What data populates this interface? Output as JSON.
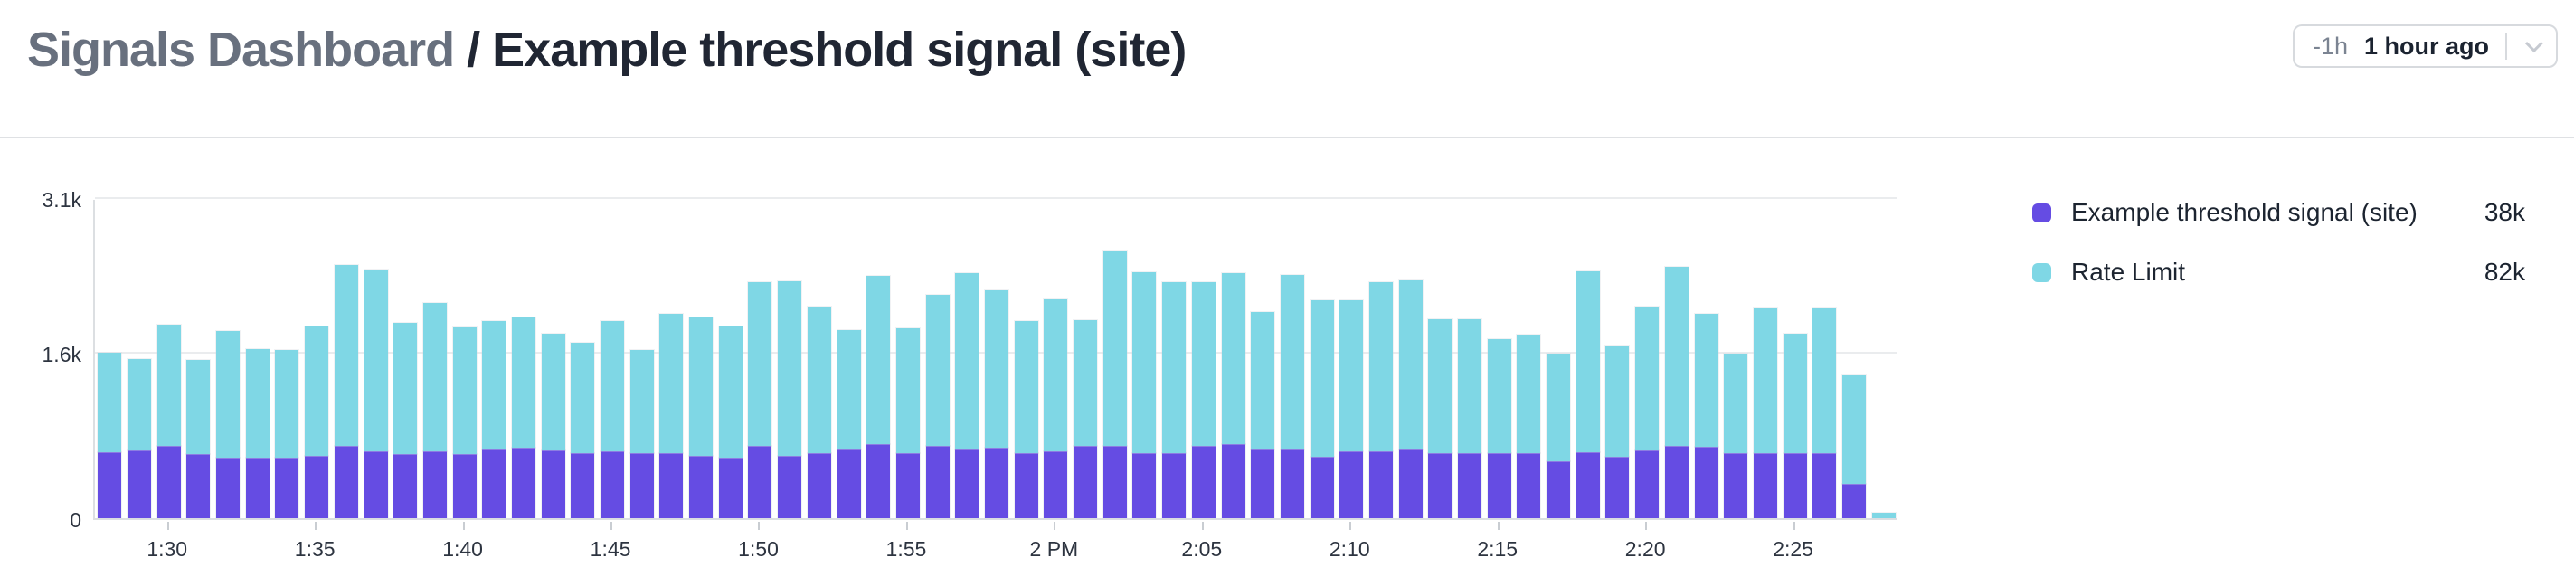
{
  "header": {
    "breadcrumb_root": "Signals Dashboard",
    "separator": "/",
    "title": "Example threshold signal (site)",
    "time_range": {
      "shorthand": "-1h",
      "label": "1 hour ago"
    }
  },
  "legend": {
    "items": [
      {
        "name": "Example threshold signal (site)",
        "total": "38k",
        "color": "#654ce3"
      },
      {
        "name": "Rate Limit",
        "total": "82k",
        "color": "#7fd7e5"
      }
    ]
  },
  "chart_data": {
    "type": "bar",
    "stacked": true,
    "title": "",
    "xlabel": "",
    "ylabel": "",
    "ylim": [
      0,
      3100
    ],
    "grid": true,
    "legend_position": "right",
    "x": [
      "1:28",
      "1:29",
      "1:30",
      "1:31",
      "1:32",
      "1:33",
      "1:34",
      "1:35",
      "1:36",
      "1:37",
      "1:38",
      "1:39",
      "1:40",
      "1:41",
      "1:42",
      "1:43",
      "1:44",
      "1:45",
      "1:46",
      "1:47",
      "1:48",
      "1:49",
      "1:50",
      "1:51",
      "1:52",
      "1:53",
      "1:54",
      "1:55",
      "1:56",
      "1:57",
      "1:58",
      "1:59",
      "2:00",
      "2:01",
      "2:02",
      "2:03",
      "2:04",
      "2:05",
      "2:06",
      "2:07",
      "2:08",
      "2:09",
      "2:10",
      "2:11",
      "2:12",
      "2:13",
      "2:14",
      "2:15",
      "2:16",
      "2:17",
      "2:18",
      "2:19",
      "2:20",
      "2:21",
      "2:22",
      "2:23",
      "2:24",
      "2:25",
      "2:26",
      "2:27",
      "2:28"
    ],
    "series": [
      {
        "name": "Example threshold signal (site)",
        "color": "#654ce3",
        "total_label": "38k",
        "values": [
          640,
          660,
          700,
          620,
          585,
          585,
          585,
          605,
          700,
          645,
          620,
          645,
          620,
          670,
          680,
          655,
          635,
          645,
          630,
          635,
          605,
          585,
          700,
          605,
          630,
          665,
          715,
          635,
          700,
          670,
          680,
          635,
          645,
          700,
          700,
          635,
          635,
          700,
          715,
          670,
          665,
          595,
          645,
          645,
          665,
          630,
          630,
          630,
          635,
          550,
          640,
          595,
          655,
          700,
          690,
          630,
          630,
          630,
          630,
          330,
          0
        ]
      },
      {
        "name": "Rate Limit",
        "color": "#7fd7e5",
        "total_label": "82k",
        "values": [
          960,
          885,
          1170,
          910,
          1225,
          1055,
          1040,
          1255,
          1755,
          1765,
          1275,
          1440,
          1230,
          1235,
          1265,
          1135,
          1065,
          1260,
          995,
          1340,
          1340,
          1275,
          1585,
          1690,
          1420,
          1160,
          1635,
          1205,
          1465,
          1705,
          1530,
          1275,
          1475,
          1220,
          1895,
          1750,
          1650,
          1585,
          1660,
          1330,
          1690,
          1515,
          1465,
          1640,
          1640,
          1300,
          1300,
          1100,
          1145,
          1045,
          1750,
          1070,
          1395,
          1735,
          1290,
          965,
          1405,
          1160,
          1405,
          1055,
          55
        ]
      }
    ],
    "x_ticks": [
      {
        "label": "1:30",
        "index": 2
      },
      {
        "label": "1:35",
        "index": 7
      },
      {
        "label": "1:40",
        "index": 12
      },
      {
        "label": "1:45",
        "index": 17
      },
      {
        "label": "1:50",
        "index": 22
      },
      {
        "label": "1:55",
        "index": 27
      },
      {
        "label": "2 PM",
        "index": 32
      },
      {
        "label": "2:05",
        "index": 37
      },
      {
        "label": "2:10",
        "index": 42
      },
      {
        "label": "2:15",
        "index": 47
      },
      {
        "label": "2:20",
        "index": 52
      },
      {
        "label": "2:25",
        "index": 57
      }
    ],
    "y_ticks": [
      {
        "label": "0",
        "value": 0
      },
      {
        "label": "1.6k",
        "value": 1600
      },
      {
        "label": "3.1k",
        "value": 3100
      }
    ]
  }
}
